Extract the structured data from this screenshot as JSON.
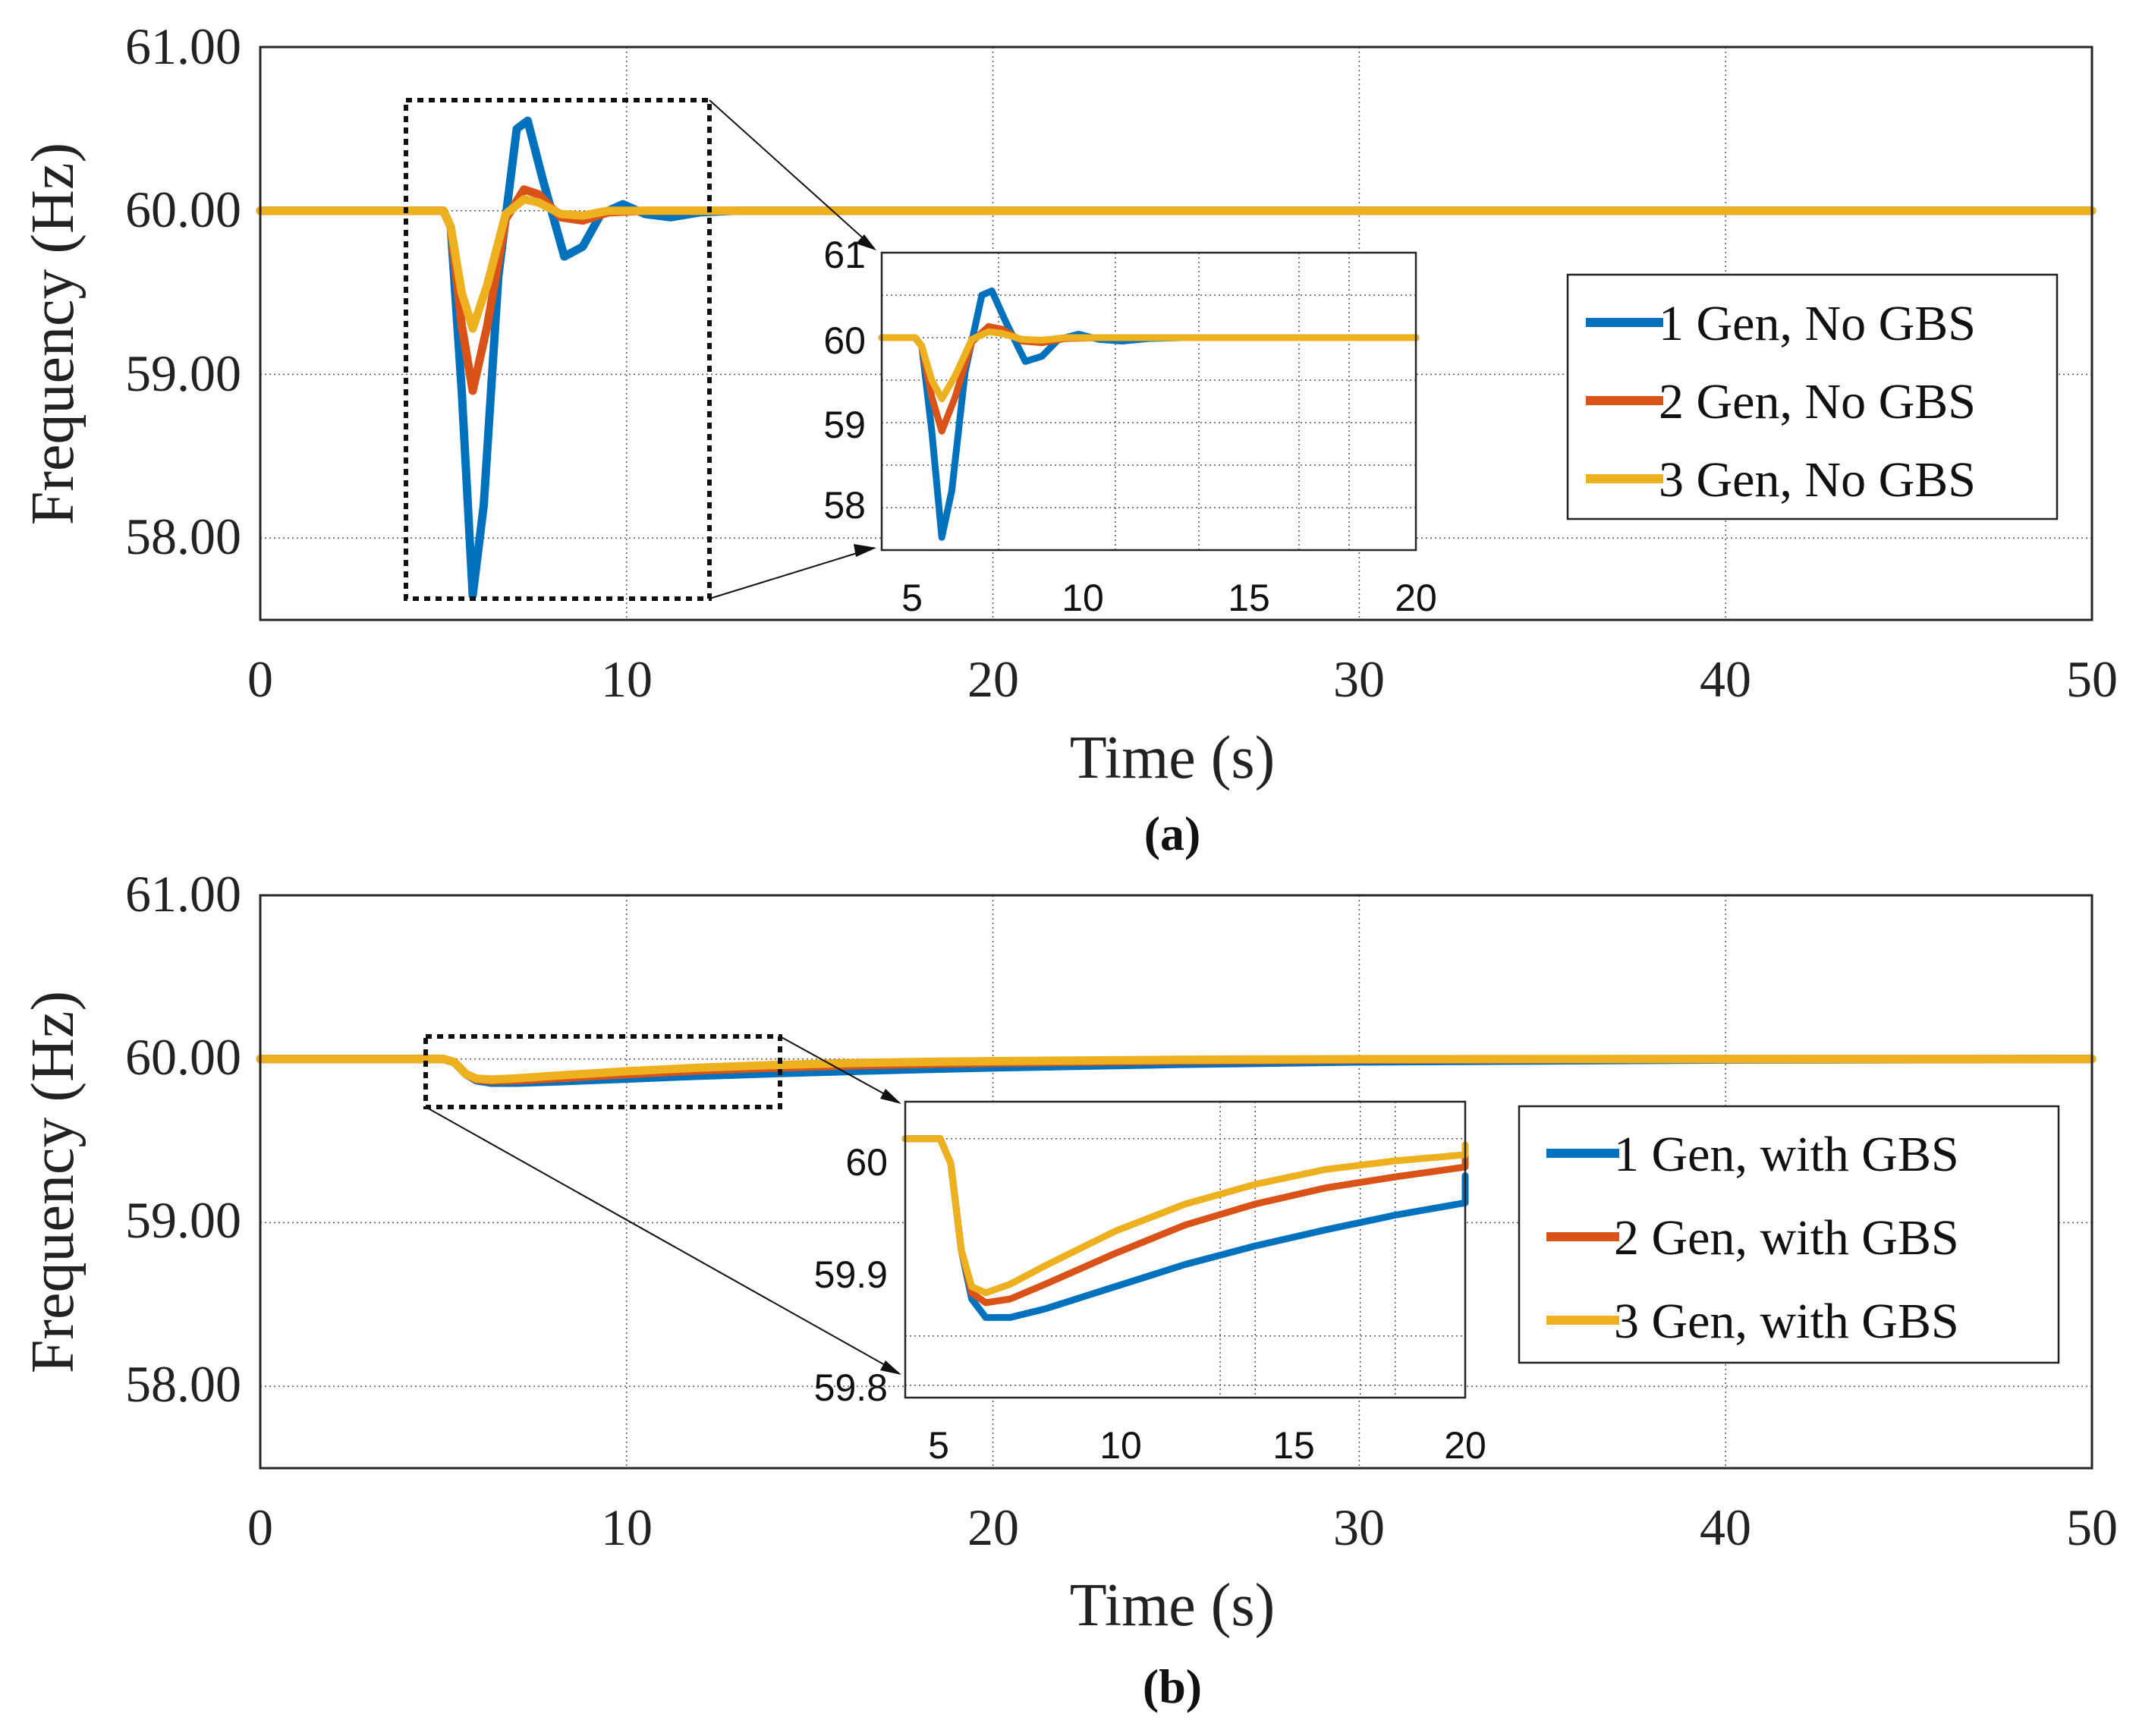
{
  "figure": {
    "panels": [
      {
        "caption": "(a)",
        "ylabel": "Frequency (Hz)",
        "xlabel": "Time (s)",
        "legend": [
          "1 Gen, No GBS",
          "2 Gen, No GBS",
          "3 Gen, No GBS"
        ],
        "yticks": [
          "58.00",
          "59.00",
          "60.00",
          "61.00"
        ],
        "xticks": [
          "0",
          "10",
          "20",
          "30",
          "40",
          "50"
        ],
        "inset_yticks": [
          "58",
          "59",
          "60",
          "61"
        ],
        "inset_xticks": [
          "5",
          "10",
          "15",
          "20"
        ]
      },
      {
        "caption": "(b)",
        "ylabel": "Frequency (Hz)",
        "xlabel": "Time (s)",
        "legend": [
          "1 Gen, with GBS",
          "2 Gen, with GBS",
          "3 Gen, with GBS"
        ],
        "yticks": [
          "58.00",
          "59.00",
          "60.00",
          "61.00"
        ],
        "xticks": [
          "0",
          "10",
          "20",
          "30",
          "40",
          "50"
        ],
        "inset_yticks": [
          "59.8",
          "59.9",
          "60"
        ],
        "inset_xticks": [
          "5",
          "10",
          "15",
          "20"
        ]
      }
    ]
  },
  "colors": {
    "series1": "#0072BD",
    "series2": "#D95319",
    "series3": "#EDB120"
  },
  "chart_data": [
    {
      "type": "line",
      "xlabel": "Time (s)",
      "ylabel": "Frequency (Hz)",
      "xlim": [
        0,
        50
      ],
      "ylim": [
        57.5,
        61
      ],
      "grid": true,
      "legend_position": "right",
      "series": [
        {
          "name": "1 Gen, No GBS",
          "x": [
            0,
            5,
            5.2,
            5.5,
            5.8,
            6.1,
            6.5,
            7.0,
            7.3,
            7.7,
            8.3,
            8.8,
            9.3,
            9.9,
            10.5,
            11.2,
            12,
            13,
            15,
            20,
            50
          ],
          "y": [
            60,
            60,
            59.9,
            58.9,
            57.65,
            58.2,
            59.6,
            60.5,
            60.55,
            60.2,
            59.72,
            59.78,
            59.98,
            60.04,
            59.98,
            59.96,
            59.99,
            60.0,
            60.0,
            60.0,
            60.0
          ]
        },
        {
          "name": "2 Gen, No GBS",
          "x": [
            0,
            5,
            5.2,
            5.5,
            5.8,
            6.2,
            6.7,
            7.2,
            7.6,
            8.2,
            8.8,
            9.5,
            10.5,
            12,
            15,
            50
          ],
          "y": [
            60,
            60,
            59.9,
            59.3,
            58.9,
            59.3,
            59.95,
            60.13,
            60.1,
            59.96,
            59.94,
            59.99,
            60.0,
            60.0,
            60.0,
            60.0
          ]
        },
        {
          "name": "3 Gen, No GBS",
          "x": [
            0,
            5,
            5.2,
            5.5,
            5.8,
            6.2,
            6.7,
            7.2,
            7.6,
            8.2,
            8.8,
            9.5,
            10.5,
            12,
            15,
            50
          ],
          "y": [
            60,
            60,
            59.9,
            59.5,
            59.28,
            59.55,
            59.98,
            60.07,
            60.05,
            59.98,
            59.97,
            60.0,
            60.0,
            60.0,
            60.0,
            60.0
          ]
        }
      ],
      "inset": {
        "xlim": [
          4,
          20
        ],
        "ylim": [
          57.5,
          61
        ]
      }
    },
    {
      "type": "line",
      "xlabel": "Time (s)",
      "ylabel": "Frequency (Hz)",
      "xlim": [
        0,
        50
      ],
      "ylim": [
        57.5,
        61
      ],
      "grid": true,
      "legend_position": "right",
      "series": [
        {
          "name": "1 Gen, with GBS",
          "x": [
            0,
            5,
            5.3,
            5.6,
            5.9,
            6.3,
            7,
            8,
            10,
            12,
            14,
            16,
            18,
            20,
            25,
            30,
            40,
            50
          ],
          "y": [
            60,
            60,
            59.98,
            59.91,
            59.87,
            59.855,
            59.855,
            59.862,
            59.88,
            59.898,
            59.913,
            59.926,
            59.938,
            59.948,
            59.97,
            59.985,
            59.997,
            60.0
          ]
        },
        {
          "name": "2 Gen, with GBS",
          "x": [
            0,
            5,
            5.3,
            5.6,
            5.9,
            6.3,
            7,
            8,
            10,
            12,
            14,
            16,
            18,
            20,
            25,
            30,
            40,
            50
          ],
          "y": [
            60,
            60,
            59.98,
            59.91,
            59.875,
            59.867,
            59.87,
            59.882,
            59.907,
            59.93,
            59.947,
            59.96,
            59.969,
            59.977,
            59.99,
            59.996,
            60.0,
            60.0
          ]
        },
        {
          "name": "3 Gen, with GBS",
          "x": [
            0,
            5,
            5.3,
            5.6,
            5.9,
            6.3,
            7,
            8,
            10,
            12,
            14,
            16,
            18,
            20,
            25,
            30,
            40,
            50
          ],
          "y": [
            60,
            60,
            59.98,
            59.91,
            59.88,
            59.875,
            59.882,
            59.897,
            59.925,
            59.947,
            59.963,
            59.975,
            59.982,
            59.987,
            59.995,
            59.999,
            60.0,
            60.0
          ]
        }
      ],
      "inset": {
        "xlim": [
          4,
          20
        ],
        "ylim": [
          59.79,
          60.03
        ]
      }
    }
  ]
}
